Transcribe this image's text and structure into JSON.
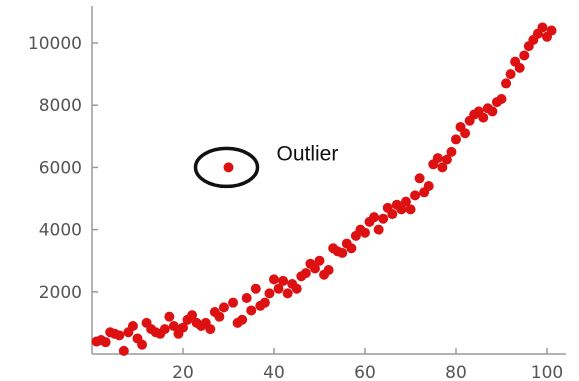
{
  "chart_data": {
    "type": "scatter",
    "title": "",
    "xlabel": "",
    "ylabel": "",
    "xlim": [
      0,
      102
    ],
    "ylim": [
      0,
      10500
    ],
    "x_ticks": [
      20,
      40,
      60,
      80,
      100
    ],
    "x_tick_labels": [
      "20",
      "40",
      "60",
      "80",
      "100"
    ],
    "y_ticks": [
      2000,
      4000,
      6000,
      8000,
      10000
    ],
    "y_tick_labels": [
      "2000",
      "4000",
      "6000",
      "8000",
      "10000"
    ],
    "grid": false,
    "point_color": "#dd1111",
    "annotation": {
      "text": "Outlier",
      "x": 30,
      "y": 6000
    },
    "series": [
      {
        "points": [
          [
            1,
            400
          ],
          [
            2,
            450
          ],
          [
            3,
            380
          ],
          [
            4,
            700
          ],
          [
            5,
            650
          ],
          [
            6,
            600
          ],
          [
            7,
            100
          ],
          [
            8,
            700
          ],
          [
            9,
            900
          ],
          [
            10,
            500
          ],
          [
            11,
            300
          ],
          [
            12,
            1000
          ],
          [
            13,
            800
          ],
          [
            14,
            700
          ],
          [
            15,
            650
          ],
          [
            16,
            800
          ],
          [
            17,
            1200
          ],
          [
            18,
            900
          ],
          [
            19,
            650
          ],
          [
            20,
            850
          ],
          [
            21,
            1100
          ],
          [
            22,
            1250
          ],
          [
            23,
            1000
          ],
          [
            24,
            900
          ],
          [
            25,
            1000
          ],
          [
            26,
            800
          ],
          [
            27,
            1350
          ],
          [
            28,
            1200
          ],
          [
            29,
            1500
          ],
          [
            30,
            6000
          ],
          [
            31,
            1650
          ],
          [
            32,
            1000
          ],
          [
            33,
            1100
          ],
          [
            34,
            1800
          ],
          [
            35,
            1400
          ],
          [
            36,
            2100
          ],
          [
            37,
            1550
          ],
          [
            38,
            1650
          ],
          [
            39,
            1950
          ],
          [
            40,
            2400
          ],
          [
            41,
            2100
          ],
          [
            42,
            2350
          ],
          [
            43,
            1950
          ],
          [
            44,
            2250
          ],
          [
            45,
            2100
          ],
          [
            46,
            2500
          ],
          [
            47,
            2600
          ],
          [
            48,
            2900
          ],
          [
            49,
            2750
          ],
          [
            50,
            3000
          ],
          [
            51,
            2550
          ],
          [
            52,
            2700
          ],
          [
            53,
            3400
          ],
          [
            54,
            3300
          ],
          [
            55,
            3250
          ],
          [
            56,
            3550
          ],
          [
            57,
            3400
          ],
          [
            58,
            3800
          ],
          [
            59,
            4000
          ],
          [
            60,
            3900
          ],
          [
            61,
            4250
          ],
          [
            62,
            4400
          ],
          [
            63,
            4000
          ],
          [
            64,
            4350
          ],
          [
            65,
            4700
          ],
          [
            66,
            4500
          ],
          [
            67,
            4800
          ],
          [
            68,
            4650
          ],
          [
            69,
            4900
          ],
          [
            70,
            4650
          ],
          [
            71,
            5100
          ],
          [
            72,
            5650
          ],
          [
            73,
            5200
          ],
          [
            74,
            5400
          ],
          [
            75,
            6100
          ],
          [
            76,
            6300
          ],
          [
            77,
            6000
          ],
          [
            78,
            6250
          ],
          [
            79,
            6500
          ],
          [
            80,
            6900
          ],
          [
            81,
            7300
          ],
          [
            82,
            7100
          ],
          [
            83,
            7500
          ],
          [
            84,
            7700
          ],
          [
            85,
            7800
          ],
          [
            86,
            7600
          ],
          [
            87,
            7900
          ],
          [
            88,
            7800
          ],
          [
            89,
            8100
          ],
          [
            90,
            8200
          ],
          [
            91,
            8700
          ],
          [
            92,
            9000
          ],
          [
            93,
            9400
          ],
          [
            94,
            9200
          ],
          [
            95,
            9600
          ],
          [
            96,
            9900
          ],
          [
            97,
            10100
          ],
          [
            98,
            10300
          ],
          [
            99,
            10500
          ],
          [
            100,
            10200
          ],
          [
            101,
            10400
          ]
        ]
      }
    ]
  }
}
